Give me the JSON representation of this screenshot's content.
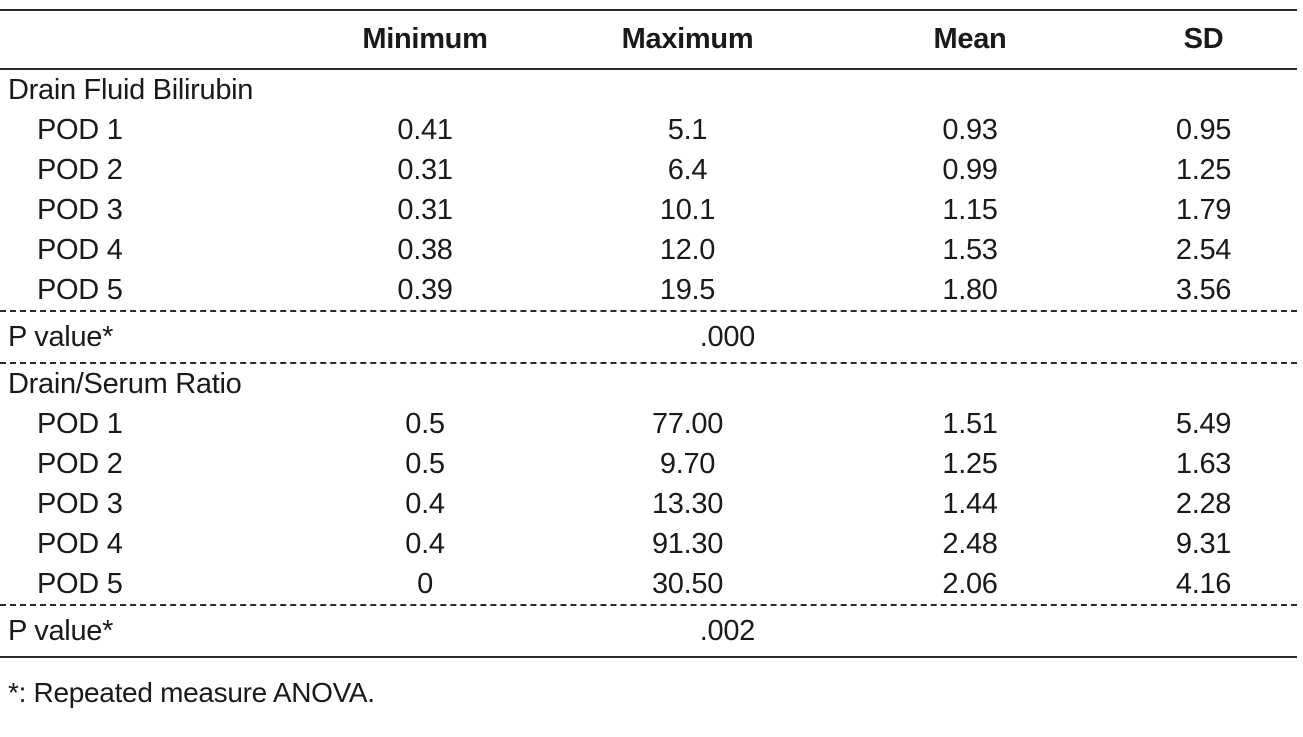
{
  "header": {
    "label": "",
    "minimum": "Minimum",
    "maximum": "Maximum",
    "mean": "Mean",
    "sd": "SD"
  },
  "sections": [
    {
      "title": "Drain Fluid Bilirubin",
      "rows": [
        {
          "label": "POD 1",
          "min": "0.41",
          "max": "5.1",
          "mean": "0.93",
          "sd": "0.95"
        },
        {
          "label": "POD 2",
          "min": "0.31",
          "max": "6.4",
          "mean": "0.99",
          "sd": "1.25"
        },
        {
          "label": "POD 3",
          "min": "0.31",
          "max": "10.1",
          "mean": "1.15",
          "sd": "1.79"
        },
        {
          "label": "POD 4",
          "min": "0.38",
          "max": "12.0",
          "mean": "1.53",
          "sd": "2.54"
        },
        {
          "label": "POD 5",
          "min": "0.39",
          "max": "19.5",
          "mean": "1.80",
          "sd": "3.56"
        }
      ],
      "pvalue_label": "P value*",
      "pvalue": ".000"
    },
    {
      "title": "Drain/Serum Ratio",
      "rows": [
        {
          "label": "POD 1",
          "min": "0.5",
          "max": "77.00",
          "mean": "1.51",
          "sd": "5.49"
        },
        {
          "label": "POD 2",
          "min": "0.5",
          "max": "9.70",
          "mean": "1.25",
          "sd": "1.63"
        },
        {
          "label": "POD 3",
          "min": "0.4",
          "max": "13.30",
          "mean": "1.44",
          "sd": "2.28"
        },
        {
          "label": "POD 4",
          "min": "0.4",
          "max": "91.30",
          "mean": "2.48",
          "sd": "9.31"
        },
        {
          "label": "POD 5",
          "min": "0",
          "max": "30.50",
          "mean": "2.06",
          "sd": "4.16"
        }
      ],
      "pvalue_label": "P value*",
      "pvalue": ".002"
    }
  ],
  "footnote": "*: Repeated measure ANOVA."
}
